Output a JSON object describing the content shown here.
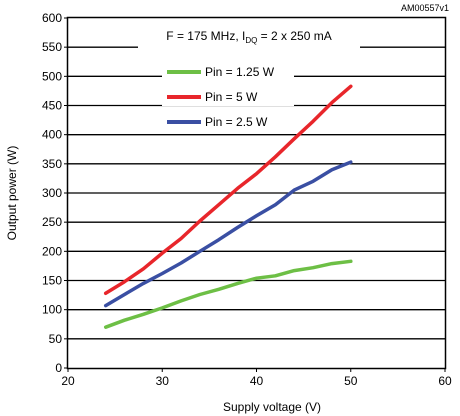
{
  "figure_id": "AM00557v1",
  "chart_data": {
    "type": "line",
    "title": {
      "prefix": "F = 175 MHz, I",
      "subscript": "DQ",
      "suffix": " = 2 x 250 mA"
    },
    "xlabel": "Supply voltage (V)",
    "ylabel": "Output power (W)",
    "xlim": [
      20,
      60
    ],
    "ylim": [
      0,
      600
    ],
    "x_ticks": [
      20,
      30,
      40,
      50,
      60
    ],
    "y_ticks": [
      0,
      50,
      100,
      150,
      200,
      250,
      300,
      350,
      400,
      450,
      500,
      550,
      600
    ],
    "grid": "horizontal",
    "legend_position": "top-left",
    "legend_order": [
      2,
      0,
      1
    ],
    "series": [
      {
        "name": "Pin = 5 W",
        "color": "#e8262b",
        "x": [
          24,
          26,
          28,
          30,
          32,
          34,
          36,
          38,
          40,
          42,
          44,
          46,
          48,
          50
        ],
        "y": [
          128,
          148,
          170,
          197,
          222,
          252,
          280,
          308,
          333,
          362,
          393,
          423,
          455,
          483
        ]
      },
      {
        "name": "Pin = 2.5 W",
        "color": "#3a4fa3",
        "x": [
          24,
          26,
          28,
          30,
          32,
          34,
          36,
          38,
          40,
          42,
          44,
          46,
          48,
          50
        ],
        "y": [
          107,
          126,
          145,
          162,
          180,
          200,
          220,
          241,
          261,
          280,
          305,
          320,
          340,
          353
        ]
      },
      {
        "name": "Pin = 1.25 W",
        "color": "#6dbf45",
        "x": [
          24,
          26,
          28,
          30,
          32,
          34,
          36,
          38,
          40,
          42,
          44,
          46,
          48,
          50
        ],
        "y": [
          70,
          82,
          92,
          103,
          115,
          126,
          135,
          145,
          154,
          158,
          167,
          172,
          179,
          183
        ]
      }
    ]
  }
}
